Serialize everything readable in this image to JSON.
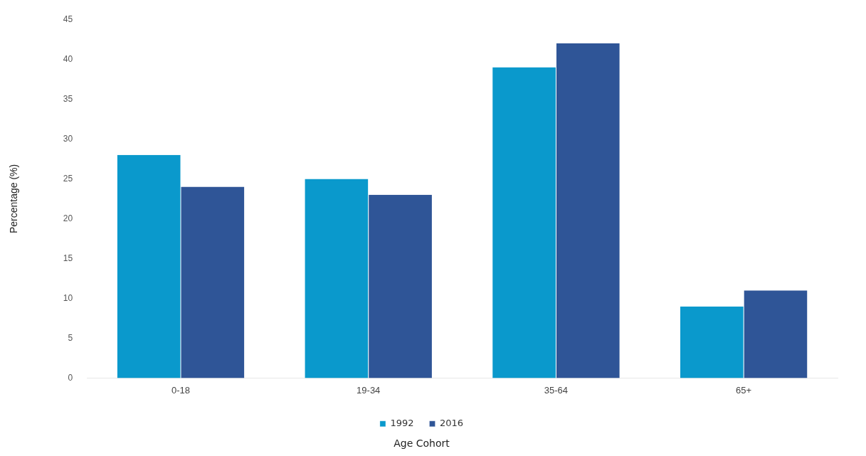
{
  "chart_data": {
    "type": "bar",
    "xlabel": "Age Cohort",
    "ylabel": "Percentage (%)",
    "categories": [
      "0-18",
      "19-34",
      "35-64",
      "65+"
    ],
    "series": [
      {
        "name": "1992",
        "color": "#0a99cc",
        "values": [
          28,
          25,
          39,
          9
        ]
      },
      {
        "name": "2016",
        "color": "#2f5597",
        "values": [
          24,
          23,
          42,
          11
        ]
      }
    ],
    "ylim": [
      0,
      45
    ],
    "yticks": [
      0,
      5,
      10,
      15,
      20,
      25,
      30,
      35,
      40,
      45
    ],
    "grid": false,
    "legend": "bottom"
  }
}
